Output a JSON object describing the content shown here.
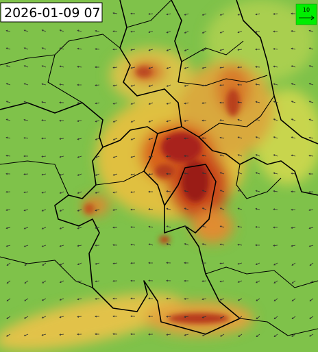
{
  "map": {
    "timestamp": "2026-01-09 07",
    "wind_scale": 10
  }
}
